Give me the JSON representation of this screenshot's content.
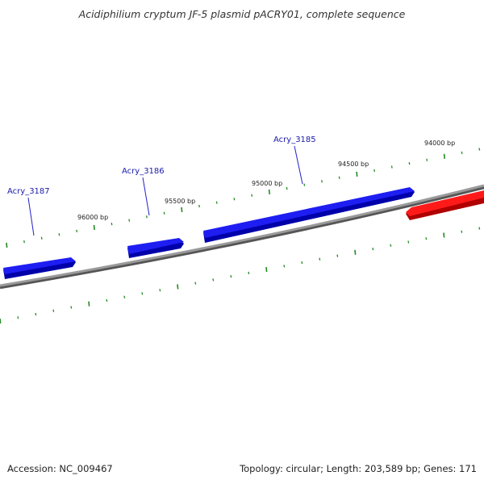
{
  "title": "Acidiphilium cryptum JF-5 plasmid pACRY01, complete sequence",
  "footer": {
    "accession": "Accession: NC_009467",
    "summary": "Topology: circular; Length: 203,589 bp; Genes: 171"
  },
  "colors": {
    "backbone": "#808080",
    "forward_gene": "#1010e0",
    "reverse_gene": "#ee1111",
    "ticks": "#228b22",
    "label_line": "#2222cc"
  },
  "scale_labels": [
    "96000 bp",
    "95500 bp",
    "95000 bp",
    "94500 bp",
    "94000 bp"
  ],
  "genes": [
    {
      "label": "Acry_3187",
      "strand": "forward"
    },
    {
      "label": "Acry_3186",
      "strand": "forward"
    },
    {
      "label": "Acry_3185",
      "strand": "forward"
    },
    {
      "label": "",
      "strand": "reverse"
    }
  ]
}
